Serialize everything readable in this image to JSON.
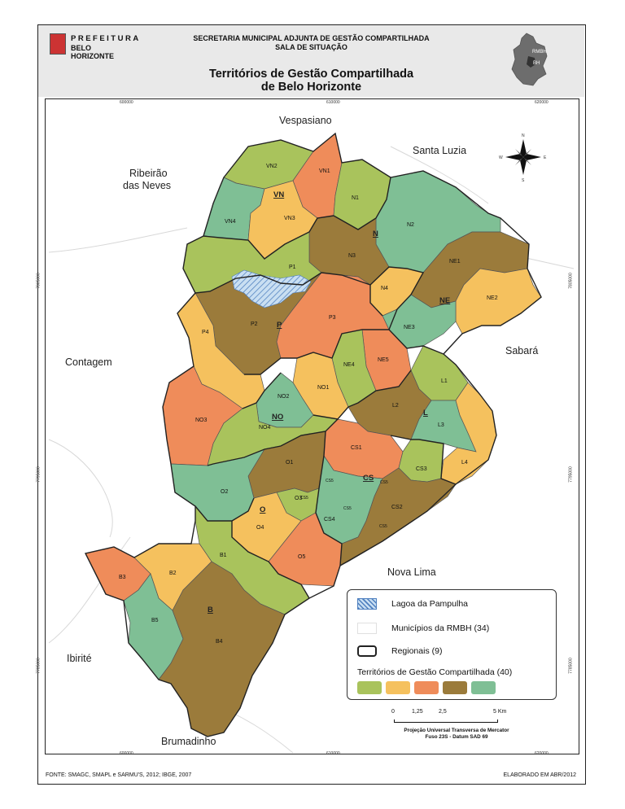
{
  "header": {
    "logo_line1": "PREFEITURA",
    "logo_line2": "BELO HORIZONTE",
    "secretaria": "SECRETARIA MUNICIPAL ADJUNTA DE GESTÃO COMPARTILHADA",
    "sala": "SALA DE SITUAÇÃO",
    "title_line1": "Territórios de Gestão Compartilhada",
    "title_line2": "de Belo Horizonte",
    "inset_label": "RMBH",
    "inset_sub": "BH"
  },
  "coordinates": {
    "x_top": [
      "600000",
      "610000",
      "620000"
    ],
    "x_bottom": [
      "600000",
      "610000",
      "620000"
    ],
    "y_left": [
      "7805000",
      "7795000",
      "7785000"
    ],
    "y_right": [
      "7805000",
      "7795000",
      "7785000"
    ]
  },
  "neighbors": [
    "Vespasiano",
    "Santa Luzia",
    "Ribeirão",
    "das Neves",
    "Contagem",
    "Sabará",
    "Nova Lima",
    "Ibirité",
    "Brumadinho"
  ],
  "regionals": [
    "VN",
    "N",
    "NE",
    "P",
    "NO",
    "L",
    "CS",
    "O",
    "B"
  ],
  "territories": [
    "VN1",
    "VN2",
    "VN3",
    "VN4",
    "N1",
    "N2",
    "N3",
    "N4",
    "NE1",
    "NE2",
    "NE3",
    "NE4",
    "NE5",
    "P1",
    "P2",
    "P3",
    "P4",
    "NO1",
    "NO2",
    "NO3",
    "NO4",
    "L1",
    "L2",
    "L3",
    "L4",
    "CS1",
    "CS2",
    "CS3",
    "CS4",
    "CS5",
    "CS5",
    "CS5",
    "CS5",
    "CS5",
    "O1",
    "O2",
    "O3",
    "O4",
    "O5",
    "B1",
    "B2",
    "B3",
    "B4",
    "B5"
  ],
  "compass": {
    "n": "N",
    "s": "S",
    "e": "E",
    "w": "W"
  },
  "legend": {
    "lagoa": "Lagoa da Pampulha",
    "municipios": "Municípios da RMBH (34)",
    "regionais": "Regionais (9)",
    "territorios": "Territórios de Gestão Compartilhada (40)",
    "class_colors": [
      "#a9c35c",
      "#f5c15e",
      "#ef8c5a",
      "#9b7b3b",
      "#7fbf95"
    ]
  },
  "scale": {
    "ticks": [
      "0",
      "1,25",
      "2,5",
      "5 Km"
    ]
  },
  "projection": {
    "line1": "Projeção Universal Transversa de Mercator",
    "line2": "Fuso 23S - Datum SAD 69"
  },
  "footer": {
    "fonte": "FONTE: SMAGC, SMAPL e SARMU'S, 2012; IBGE, 2007",
    "elaborado": "ELABORADO EM ABR/2012"
  }
}
